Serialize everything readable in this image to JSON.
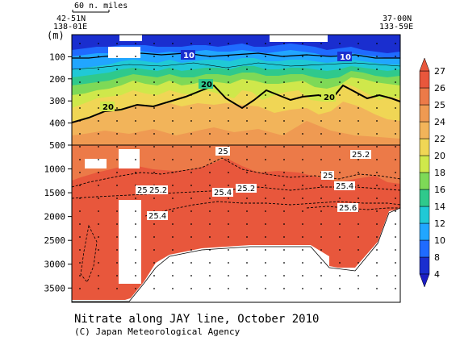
{
  "chart_data": {
    "type": "heatmap",
    "title": "Nitrate along JAY line, October 2010",
    "credit": "(C) Japan Meteorological Agency",
    "y_unit_label": "(m)",
    "scale_bar_label": "60 n. miles",
    "stations": {
      "left": {
        "lat": "42-51N",
        "lon": "138-01E"
      },
      "right": {
        "lat": "37-00N",
        "lon": "133-59E"
      }
    },
    "y_upper": {
      "range": [
        0,
        500
      ],
      "ticks": [
        "100",
        "200",
        "300",
        "400",
        "500"
      ]
    },
    "y_lower": {
      "range": [
        500,
        3800
      ],
      "ticks": [
        "1000",
        "1500",
        "2000",
        "2500",
        "3000",
        "3500"
      ]
    },
    "colorbar": {
      "ticks": [
        "4",
        "8",
        "10",
        "12",
        "14",
        "16",
        "18",
        "20",
        "22",
        "24",
        "25",
        "26",
        "27"
      ],
      "colors": [
        "#1a2ecf",
        "#1f6bff",
        "#21a6ff",
        "#20c9d6",
        "#2fc98c",
        "#7ed957",
        "#cfe84b",
        "#f0d655",
        "#f2b45a",
        "#ef9a52",
        "#ec7a48",
        "#e8573c",
        "#e8573c"
      ]
    },
    "contour_labels": [
      "10",
      "10",
      "20",
      "20",
      "20",
      "25",
      "25.2",
      "25",
      "25.2",
      "25.4",
      "25.2",
      "25.4",
      "25.6",
      "25",
      "25.4"
    ],
    "layers_upper": [
      {
        "nitrate": "4-8",
        "color": "#1a2ecf"
      },
      {
        "nitrate": "8-10",
        "color": "#1f6bff"
      },
      {
        "nitrate": "10-12",
        "color": "#21a6ff"
      },
      {
        "nitrate": "12-14",
        "color": "#20c9d6"
      },
      {
        "nitrate": "14-16",
        "color": "#2fc98c"
      },
      {
        "nitrate": "16-18",
        "color": "#7ed957"
      },
      {
        "nitrate": "18-20",
        "color": "#cfe84b"
      },
      {
        "nitrate": "20-22",
        "color": "#f0d655"
      },
      {
        "nitrate": "22-24",
        "color": "#f2b45a"
      },
      {
        "nitrate": "24-25",
        "color": "#ef9a52"
      }
    ],
    "layers_lower": [
      {
        "nitrate": "25-26",
        "color": "#ec7a48"
      },
      {
        "nitrate": "26-27",
        "color": "#e8573c"
      }
    ]
  }
}
